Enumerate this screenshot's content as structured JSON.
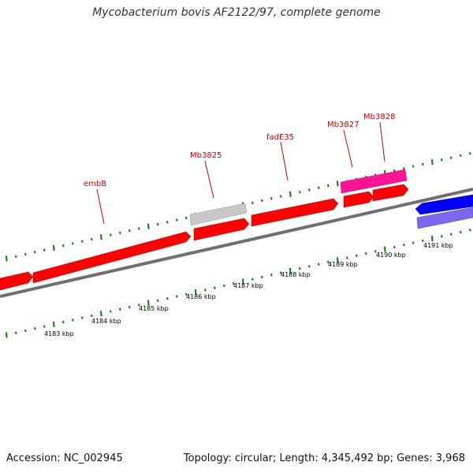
{
  "title": "Mycobacterium bovis AF2122/97, complete genome",
  "footer": {
    "accession": "Accession: NC_002945",
    "summary": "Topology: circular; Length: 4,345,492 bp; Genes: 3,968"
  },
  "colors": {
    "forward_gene": "#ff0000",
    "reverse_gene": "#0000ff",
    "gray_feature": "#bfbfbf",
    "pink_feature": "#ff1493",
    "purple_feature": "#7b68ee",
    "tick": "#008000",
    "backbone": "#808080",
    "label": "#cc0000"
  },
  "scale_labels": [
    "4183 kbp",
    "4184 kbp",
    "4185 kbp",
    "4186 kbp",
    "4187 kbp",
    "4188 kbp",
    "4189 kbp",
    "4190 kbp",
    "4191 kbp"
  ],
  "gene_labels": [
    "embB",
    "Mb3825",
    "fadE35",
    "Mb3827",
    "Mb3828"
  ]
}
